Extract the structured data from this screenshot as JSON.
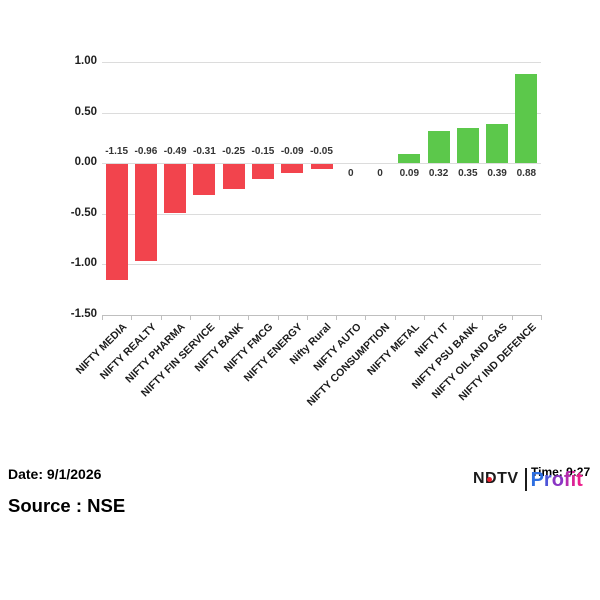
{
  "chart_data": {
    "type": "bar",
    "title": "",
    "xlabel": "",
    "ylabel": "",
    "categories": [
      "NIFTY MEDIA",
      "NIFTY REALTY",
      "NIFTY PHARMA",
      "NIFTY FIN SERVICE",
      "NIFTY BANK",
      "NIFTY FMCG",
      "NIFTY ENERGY",
      "Nifty Rural",
      "NIFTY AUTO",
      "NIFTY CONSUMPTION",
      "NIFTY METAL",
      "NIFTY IT",
      "NIFTY PSU BANK",
      "NIFTY OIL AND GAS",
      "NIFTY IND DEFENCE"
    ],
    "values": [
      -1.15,
      -0.96,
      -0.49,
      -0.31,
      -0.25,
      -0.15,
      -0.09,
      -0.05,
      0,
      0,
      0.09,
      0.32,
      0.35,
      0.39,
      0.88
    ],
    "value_labels": [
      "-1.15",
      "-0.96",
      "-0.49",
      "-0.31",
      "-0.25",
      "-0.15",
      "-0.09",
      "-0.05",
      "0",
      "0",
      "0.09",
      "0.32",
      "0.35",
      "0.39",
      "0.88"
    ],
    "ylim": [
      -1.5,
      1.0
    ],
    "yticks": [
      1.0,
      0.5,
      0.0,
      -0.5,
      -1.0,
      -1.5
    ],
    "ytick_labels": [
      "1.00",
      "0.50",
      "0.00",
      "-0.50",
      "-1.00",
      "-1.50"
    ],
    "grid": true,
    "legend": "none",
    "colors": {
      "positive_bar": "#5cc84b",
      "negative_bar": "#f2444d",
      "gridline": "#dcdcdc",
      "axis_line": "#bfbfbf",
      "label_text": "#333333"
    }
  },
  "footer": {
    "date_label": "Date: 9/1/2026",
    "time_label": "Time: 9:27",
    "source_label": "Source : NSE",
    "logo": {
      "ndtv_text": "NDTV",
      "profit_text": "Profit",
      "ndtv_color": "#1b1b1b",
      "dot_color": "#e8222e",
      "profit_letter_colors": [
        "#2e6fe0",
        "#4d55d8",
        "#8a35c4",
        "#b52bae",
        "#d92397",
        "#ec1e8c"
      ]
    }
  }
}
